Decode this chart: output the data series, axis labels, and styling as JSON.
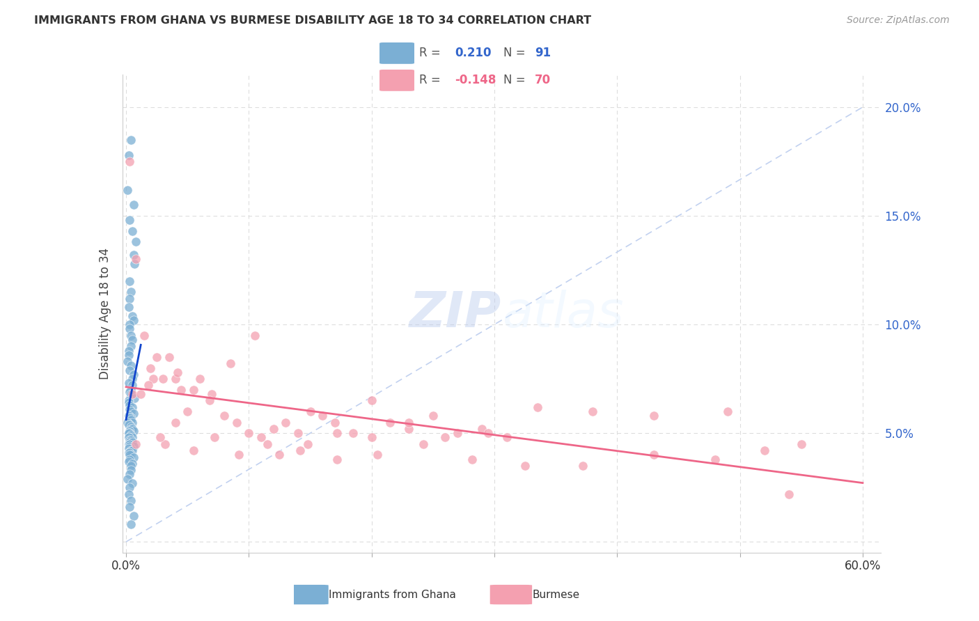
{
  "title": "IMMIGRANTS FROM GHANA VS BURMESE DISABILITY AGE 18 TO 34 CORRELATION CHART",
  "source": "Source: ZipAtlas.com",
  "ylabel": "Disability Age 18 to 34",
  "y_ticks": [
    0.0,
    0.05,
    0.1,
    0.15,
    0.2
  ],
  "y_tick_labels_right": [
    "",
    "5.0%",
    "10.0%",
    "15.0%",
    "20.0%"
  ],
  "x_ticks": [
    0.0,
    0.1,
    0.2,
    0.3,
    0.4,
    0.5,
    0.6
  ],
  "x_tick_labels": [
    "0.0%",
    "",
    "",
    "",
    "",
    "",
    "60.0%"
  ],
  "R1": 0.21,
  "N1": 91,
  "R2": -0.148,
  "N2": 70,
  "color_ghana": "#7BAFD4",
  "color_burmese": "#F4A0B0",
  "color_trendline_ghana": "#1144CC",
  "color_trendline_burmese": "#EE6688",
  "color_diagonal": "#BBCCEE",
  "watermark_zip": "ZIP",
  "watermark_atlas": "atlas",
  "legend1_label": "Immigrants from Ghana",
  "legend2_label": "Burmese",
  "ghana_x": [
    0.002,
    0.004,
    0.001,
    0.006,
    0.003,
    0.005,
    0.008,
    0.006,
    0.007,
    0.003,
    0.004,
    0.003,
    0.002,
    0.005,
    0.006,
    0.003,
    0.003,
    0.004,
    0.005,
    0.004,
    0.002,
    0.002,
    0.001,
    0.004,
    0.003,
    0.006,
    0.005,
    0.002,
    0.005,
    0.004,
    0.003,
    0.004,
    0.007,
    0.002,
    0.002,
    0.003,
    0.005,
    0.003,
    0.004,
    0.006,
    0.002,
    0.004,
    0.003,
    0.004,
    0.005,
    0.001,
    0.003,
    0.002,
    0.004,
    0.004,
    0.005,
    0.006,
    0.003,
    0.002,
    0.003,
    0.002,
    0.004,
    0.003,
    0.005,
    0.002,
    0.003,
    0.004,
    0.003,
    0.005,
    0.002,
    0.003,
    0.006,
    0.003,
    0.004,
    0.002,
    0.004,
    0.005,
    0.002,
    0.003,
    0.004,
    0.003,
    0.006,
    0.003,
    0.002,
    0.005,
    0.004,
    0.004,
    0.003,
    0.001,
    0.005,
    0.003,
    0.002,
    0.004,
    0.003,
    0.006,
    0.004
  ],
  "ghana_y": [
    0.178,
    0.185,
    0.162,
    0.155,
    0.148,
    0.143,
    0.138,
    0.132,
    0.128,
    0.12,
    0.115,
    0.112,
    0.108,
    0.104,
    0.102,
    0.1,
    0.098,
    0.095,
    0.093,
    0.09,
    0.088,
    0.086,
    0.083,
    0.081,
    0.079,
    0.077,
    0.075,
    0.073,
    0.072,
    0.07,
    0.069,
    0.068,
    0.066,
    0.065,
    0.064,
    0.063,
    0.062,
    0.061,
    0.06,
    0.059,
    0.058,
    0.057,
    0.057,
    0.056,
    0.055,
    0.055,
    0.054,
    0.054,
    0.053,
    0.052,
    0.052,
    0.051,
    0.051,
    0.05,
    0.05,
    0.05,
    0.049,
    0.048,
    0.048,
    0.048,
    0.047,
    0.047,
    0.046,
    0.046,
    0.045,
    0.045,
    0.044,
    0.044,
    0.043,
    0.043,
    0.042,
    0.042,
    0.041,
    0.041,
    0.04,
    0.04,
    0.039,
    0.038,
    0.037,
    0.036,
    0.035,
    0.033,
    0.031,
    0.029,
    0.027,
    0.025,
    0.022,
    0.019,
    0.016,
    0.012,
    0.008
  ],
  "burmese_x": [
    0.003,
    0.008,
    0.015,
    0.02,
    0.025,
    0.03,
    0.035,
    0.04,
    0.045,
    0.05,
    0.06,
    0.07,
    0.08,
    0.09,
    0.1,
    0.11,
    0.12,
    0.13,
    0.14,
    0.15,
    0.16,
    0.17,
    0.185,
    0.2,
    0.215,
    0.23,
    0.25,
    0.27,
    0.29,
    0.31,
    0.005,
    0.012,
    0.022,
    0.032,
    0.042,
    0.055,
    0.068,
    0.085,
    0.105,
    0.125,
    0.148,
    0.172,
    0.2,
    0.23,
    0.26,
    0.295,
    0.335,
    0.38,
    0.43,
    0.49,
    0.008,
    0.018,
    0.028,
    0.04,
    0.055,
    0.072,
    0.092,
    0.115,
    0.142,
    0.172,
    0.205,
    0.242,
    0.282,
    0.325,
    0.372,
    0.55,
    0.52,
    0.48,
    0.43,
    0.54
  ],
  "burmese_y": [
    0.175,
    0.13,
    0.095,
    0.08,
    0.085,
    0.075,
    0.085,
    0.075,
    0.07,
    0.06,
    0.075,
    0.068,
    0.058,
    0.055,
    0.05,
    0.048,
    0.052,
    0.055,
    0.05,
    0.06,
    0.058,
    0.055,
    0.05,
    0.065,
    0.055,
    0.052,
    0.058,
    0.05,
    0.052,
    0.048,
    0.068,
    0.068,
    0.075,
    0.045,
    0.078,
    0.07,
    0.065,
    0.082,
    0.095,
    0.04,
    0.045,
    0.05,
    0.048,
    0.055,
    0.048,
    0.05,
    0.062,
    0.06,
    0.058,
    0.06,
    0.045,
    0.072,
    0.048,
    0.055,
    0.042,
    0.048,
    0.04,
    0.045,
    0.042,
    0.038,
    0.04,
    0.045,
    0.038,
    0.035,
    0.035,
    0.045,
    0.042,
    0.038,
    0.04,
    0.022
  ]
}
